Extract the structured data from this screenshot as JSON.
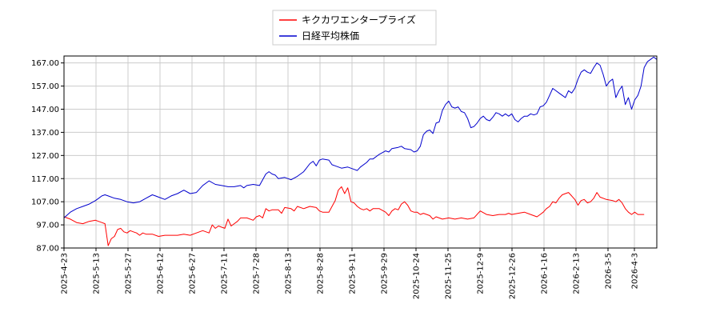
{
  "chart_data": {
    "type": "line",
    "title": "",
    "xlabel": "",
    "ylabel": "",
    "ylim": [
      87.0,
      170.0
    ],
    "y_ticks": [
      "87.00",
      "97.00",
      "107.00",
      "117.00",
      "127.00",
      "137.00",
      "147.00",
      "157.00",
      "167.00"
    ],
    "x_ticks": [
      "2025-4-23",
      "2025-5-13",
      "2025-5-27",
      "2025-6-12",
      "2025-6-27",
      "2025-7-11",
      "2025-7-28",
      "2025-8-13",
      "2025-8-28",
      "2025-9-11",
      "2025-9-29",
      "2025-10-24",
      "2025-11-25",
      "2025-12-9",
      "2025-12-26",
      "2026-1-16",
      "2026-2-13",
      "2026-3-5",
      "2026-4-3"
    ],
    "grid": true,
    "legend_position": "top-center",
    "series": [
      {
        "name": "キクカワエンタープライズ",
        "color": "#ff0000",
        "values": [
          [
            0,
            100.5
          ],
          [
            2,
            99.5
          ],
          [
            4,
            98
          ],
          [
            6,
            97.5
          ],
          [
            8,
            98.5
          ],
          [
            10,
            99
          ],
          [
            12,
            98
          ],
          [
            13,
            97.5
          ],
          [
            14,
            88
          ],
          [
            15,
            91
          ],
          [
            16,
            92
          ],
          [
            17,
            95
          ],
          [
            18,
            95.5
          ],
          [
            19,
            94
          ],
          [
            20,
            93.5
          ],
          [
            21,
            94.5
          ],
          [
            22,
            94
          ],
          [
            23,
            93.5
          ],
          [
            24,
            92.5
          ],
          [
            25,
            93.5
          ],
          [
            26,
            93
          ],
          [
            28,
            93
          ],
          [
            30,
            92
          ],
          [
            32,
            92.5
          ],
          [
            34,
            92.5
          ],
          [
            36,
            92.5
          ],
          [
            38,
            93
          ],
          [
            40,
            92.5
          ],
          [
            42,
            93.5
          ],
          [
            44,
            94.5
          ],
          [
            46,
            93.5
          ],
          [
            47,
            97
          ],
          [
            48,
            95.5
          ],
          [
            49,
            96.5
          ],
          [
            50,
            96
          ],
          [
            51,
            95.5
          ],
          [
            52,
            99.5
          ],
          [
            53,
            96.5
          ],
          [
            54,
            97.5
          ],
          [
            55,
            98.5
          ],
          [
            56,
            100
          ],
          [
            58,
            100
          ],
          [
            60,
            99
          ],
          [
            61,
            100.5
          ],
          [
            62,
            101
          ],
          [
            63,
            100
          ],
          [
            64,
            104
          ],
          [
            65,
            103
          ],
          [
            66,
            103.5
          ],
          [
            68,
            103.5
          ],
          [
            69,
            102
          ],
          [
            70,
            104.5
          ],
          [
            72,
            104
          ],
          [
            73,
            103
          ],
          [
            74,
            105
          ],
          [
            76,
            104
          ],
          [
            77,
            104.5
          ],
          [
            78,
            105
          ],
          [
            80,
            104.5
          ],
          [
            81,
            103
          ],
          [
            82,
            102.5
          ],
          [
            84,
            102.5
          ],
          [
            86,
            107.5
          ],
          [
            87,
            112
          ],
          [
            88,
            113.5
          ],
          [
            89,
            110.5
          ],
          [
            90,
            113
          ],
          [
            91,
            107
          ],
          [
            92,
            106.5
          ],
          [
            93,
            105
          ],
          [
            94,
            104
          ],
          [
            95,
            103.5
          ],
          [
            96,
            104
          ],
          [
            97,
            103
          ],
          [
            98,
            104
          ],
          [
            100,
            104
          ],
          [
            102,
            102.5
          ],
          [
            103,
            101
          ],
          [
            104,
            103
          ],
          [
            105,
            104
          ],
          [
            106,
            103.5
          ],
          [
            107,
            106
          ],
          [
            108,
            107
          ],
          [
            109,
            105.5
          ],
          [
            110,
            103
          ],
          [
            111,
            102.5
          ],
          [
            112,
            102.5
          ],
          [
            113,
            101.5
          ],
          [
            114,
            102
          ],
          [
            116,
            101
          ],
          [
            117,
            99.5
          ],
          [
            118,
            100.5
          ],
          [
            120,
            99.5
          ],
          [
            122,
            100
          ],
          [
            124,
            99.5
          ],
          [
            126,
            100
          ],
          [
            128,
            99.5
          ],
          [
            130,
            100
          ],
          [
            132,
            103
          ],
          [
            134,
            101.5
          ],
          [
            136,
            101
          ],
          [
            138,
            101.5
          ],
          [
            140,
            101.5
          ],
          [
            141,
            102
          ],
          [
            142,
            101.5
          ],
          [
            144,
            102
          ],
          [
            146,
            102.5
          ],
          [
            148,
            101.5
          ],
          [
            150,
            100.5
          ],
          [
            151,
            101.5
          ],
          [
            152,
            102.5
          ],
          [
            153,
            104
          ],
          [
            154,
            105
          ],
          [
            155,
            107
          ],
          [
            156,
            106.5
          ],
          [
            157,
            108.5
          ],
          [
            158,
            110
          ],
          [
            159,
            110.5
          ],
          [
            160,
            111
          ],
          [
            161,
            109.5
          ],
          [
            162,
            108
          ],
          [
            163,
            105.5
          ],
          [
            164,
            107.5
          ],
          [
            165,
            108
          ],
          [
            166,
            106.5
          ],
          [
            167,
            107
          ],
          [
            168,
            108.5
          ],
          [
            169,
            111
          ],
          [
            170,
            109
          ],
          [
            172,
            108
          ],
          [
            174,
            107.5
          ],
          [
            175,
            107
          ],
          [
            176,
            108
          ],
          [
            177,
            106.5
          ],
          [
            178,
            104
          ],
          [
            179,
            102.5
          ],
          [
            180,
            101.5
          ],
          [
            181,
            102.5
          ],
          [
            182,
            101.5
          ],
          [
            184,
            101.5
          ]
        ]
      },
      {
        "name": "日経平均株価",
        "color": "#0000cd",
        "values": [
          [
            0,
            100
          ],
          [
            2,
            102.5
          ],
          [
            4,
            104
          ],
          [
            6,
            105
          ],
          [
            8,
            106
          ],
          [
            10,
            107.5
          ],
          [
            11,
            108.5
          ],
          [
            12,
            109.5
          ],
          [
            13,
            110
          ],
          [
            14,
            109.5
          ],
          [
            16,
            108.5
          ],
          [
            18,
            108
          ],
          [
            20,
            107
          ],
          [
            22,
            106.5
          ],
          [
            24,
            107
          ],
          [
            26,
            108.5
          ],
          [
            28,
            110
          ],
          [
            29,
            109.5
          ],
          [
            30,
            109
          ],
          [
            32,
            108
          ],
          [
            34,
            109.5
          ],
          [
            36,
            110.5
          ],
          [
            38,
            112
          ],
          [
            40,
            110.5
          ],
          [
            42,
            111
          ],
          [
            44,
            114
          ],
          [
            46,
            116
          ],
          [
            48,
            114.5
          ],
          [
            50,
            114
          ],
          [
            52,
            113.5
          ],
          [
            54,
            113.5
          ],
          [
            56,
            114
          ],
          [
            57,
            113
          ],
          [
            58,
            114
          ],
          [
            60,
            114.5
          ],
          [
            62,
            114
          ],
          [
            63,
            116.5
          ],
          [
            64,
            119
          ],
          [
            65,
            120
          ],
          [
            66,
            119
          ],
          [
            67,
            118.5
          ],
          [
            68,
            117
          ],
          [
            70,
            117.5
          ],
          [
            72,
            116.5
          ],
          [
            74,
            118
          ],
          [
            76,
            120
          ],
          [
            78,
            123.5
          ],
          [
            79,
            124.5
          ],
          [
            80,
            122.5
          ],
          [
            81,
            125
          ],
          [
            82,
            125.5
          ],
          [
            84,
            125
          ],
          [
            85,
            123
          ],
          [
            86,
            122.5
          ],
          [
            88,
            121.5
          ],
          [
            90,
            122
          ],
          [
            92,
            121
          ],
          [
            93,
            120.5
          ],
          [
            94,
            122
          ],
          [
            96,
            124
          ],
          [
            97,
            125.5
          ],
          [
            98,
            125.5
          ],
          [
            100,
            127.5
          ],
          [
            102,
            129
          ],
          [
            103,
            128.5
          ],
          [
            104,
            130
          ],
          [
            106,
            130.5
          ],
          [
            107,
            131
          ],
          [
            108,
            130
          ],
          [
            110,
            129.5
          ],
          [
            111,
            128.5
          ],
          [
            112,
            129
          ],
          [
            113,
            131
          ],
          [
            114,
            136
          ],
          [
            115,
            137.5
          ],
          [
            116,
            138
          ],
          [
            117,
            136.5
          ],
          [
            118,
            141
          ],
          [
            119,
            141.5
          ],
          [
            120,
            146.5
          ],
          [
            121,
            149
          ],
          [
            122,
            150.5
          ],
          [
            123,
            148
          ],
          [
            124,
            147.5
          ],
          [
            125,
            148
          ],
          [
            126,
            146
          ],
          [
            127,
            145.5
          ],
          [
            128,
            143
          ],
          [
            129,
            139
          ],
          [
            130,
            139.5
          ],
          [
            131,
            141
          ],
          [
            132,
            143
          ],
          [
            133,
            144
          ],
          [
            134,
            142.5
          ],
          [
            135,
            142
          ],
          [
            136,
            143.5
          ],
          [
            137,
            145.5
          ],
          [
            138,
            145
          ],
          [
            139,
            144
          ],
          [
            140,
            145
          ],
          [
            141,
            144
          ],
          [
            142,
            145
          ],
          [
            143,
            142.5
          ],
          [
            144,
            141.5
          ],
          [
            145,
            143
          ],
          [
            146,
            144
          ],
          [
            147,
            144
          ],
          [
            148,
            145
          ],
          [
            149,
            144.5
          ],
          [
            150,
            145
          ],
          [
            151,
            148
          ],
          [
            152,
            148.5
          ],
          [
            153,
            150
          ],
          [
            154,
            153
          ],
          [
            155,
            156
          ],
          [
            156,
            155
          ],
          [
            157,
            154
          ],
          [
            158,
            153
          ],
          [
            159,
            152
          ],
          [
            160,
            155
          ],
          [
            161,
            154
          ],
          [
            162,
            156
          ],
          [
            163,
            160
          ],
          [
            164,
            163
          ],
          [
            165,
            164
          ],
          [
            166,
            163
          ],
          [
            167,
            162.5
          ],
          [
            168,
            165
          ],
          [
            169,
            167
          ],
          [
            170,
            166
          ],
          [
            171,
            162
          ],
          [
            172,
            157
          ],
          [
            173,
            159
          ],
          [
            174,
            160
          ],
          [
            175,
            152
          ],
          [
            176,
            155
          ],
          [
            177,
            157
          ],
          [
            178,
            149
          ],
          [
            179,
            152
          ],
          [
            180,
            147
          ],
          [
            181,
            151
          ],
          [
            182,
            153
          ],
          [
            183,
            157
          ],
          [
            184,
            165
          ],
          [
            185,
            167.5
          ],
          [
            186,
            168.5
          ],
          [
            187,
            169.5
          ],
          [
            188,
            168.5
          ]
        ]
      }
    ]
  }
}
